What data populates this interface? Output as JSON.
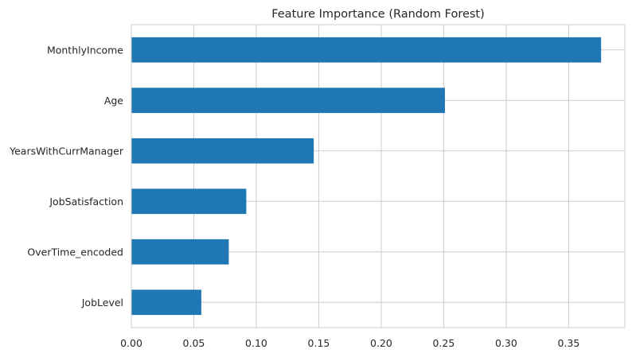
{
  "chart_data": {
    "type": "bar",
    "orientation": "horizontal",
    "title": "Feature Importance (Random Forest)",
    "xlabel": "",
    "ylabel": "",
    "categories": [
      "MonthlyIncome",
      "Age",
      "YearsWithCurrManager",
      "JobSatisfaction",
      "OverTime_encoded",
      "JobLevel"
    ],
    "values": [
      0.376,
      0.251,
      0.146,
      0.092,
      0.078,
      0.056
    ],
    "xlim": [
      0,
      0.395
    ],
    "xticks": [
      "0.00",
      "0.05",
      "0.10",
      "0.15",
      "0.20",
      "0.25",
      "0.30",
      "0.35"
    ],
    "grid": true,
    "bar_color": "#1f77b4",
    "grid_color": "#cccccc"
  }
}
